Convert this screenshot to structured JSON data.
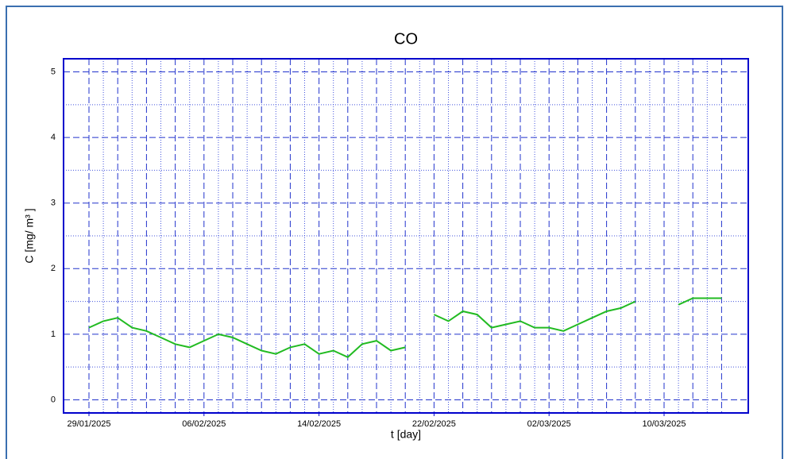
{
  "chart_data": {
    "type": "line",
    "title": "CO",
    "xlabel": "t [day]",
    "ylabel": "C [mg/ m³ ]",
    "x": [
      "29/01/2025",
      "30/01/2025",
      "31/01/2025",
      "01/02/2025",
      "02/02/2025",
      "03/02/2025",
      "04/02/2025",
      "05/02/2025",
      "06/02/2025",
      "07/02/2025",
      "08/02/2025",
      "09/02/2025",
      "10/02/2025",
      "11/02/2025",
      "12/02/2025",
      "13/02/2025",
      "14/02/2025",
      "15/02/2025",
      "16/02/2025",
      "17/02/2025",
      "18/02/2025",
      "19/02/2025",
      "20/02/2025",
      "21/02/2025",
      "22/02/2025",
      "23/02/2025",
      "24/02/2025",
      "25/02/2025",
      "26/02/2025",
      "27/02/2025",
      "28/02/2025",
      "01/03/2025",
      "02/03/2025",
      "03/03/2025",
      "04/03/2025",
      "05/03/2025",
      "06/03/2025",
      "07/03/2025",
      "08/03/2025",
      "09/03/2025",
      "10/03/2025",
      "11/03/2025",
      "12/03/2025",
      "13/03/2025",
      "14/03/2025"
    ],
    "series": [
      {
        "name": "CO",
        "color": "#22bb22",
        "values": [
          1.1,
          1.2,
          1.25,
          1.1,
          1.05,
          0.95,
          0.85,
          0.8,
          0.9,
          1.0,
          0.95,
          0.85,
          0.75,
          0.7,
          0.8,
          0.85,
          0.7,
          0.75,
          0.65,
          0.85,
          0.9,
          0.75,
          0.8,
          null,
          1.3,
          1.2,
          1.35,
          1.3,
          1.1,
          1.15,
          1.2,
          1.1,
          1.1,
          1.05,
          1.15,
          1.25,
          1.35,
          1.4,
          1.5,
          null,
          null,
          1.45,
          1.55,
          1.55,
          1.55
        ]
      }
    ],
    "ylim": [
      -0.2,
      5.2
    ],
    "yticks": [
      0,
      1,
      2,
      3,
      4,
      5
    ],
    "xticks": [
      "29/01/2025",
      "06/02/2025",
      "14/02/2025",
      "22/02/2025",
      "02/03/2025",
      "10/03/2025"
    ],
    "grid": true
  }
}
